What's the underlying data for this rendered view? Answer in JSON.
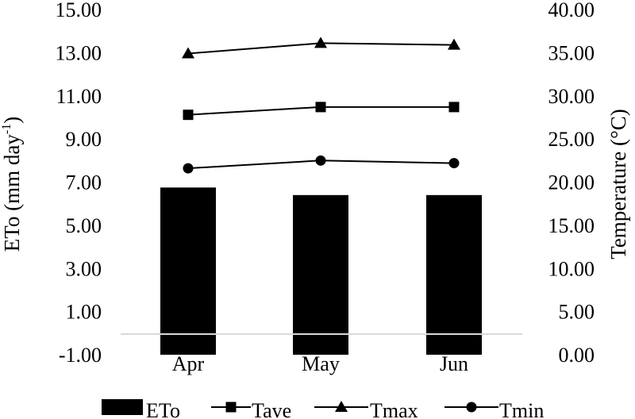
{
  "chart_data": {
    "type": "bar",
    "categories": [
      "Apr",
      "May",
      "Jun"
    ],
    "y_left": {
      "label": "ETo (mm day",
      "label_superscript": "-1",
      "label_close": ")",
      "ylim": [
        -1,
        15
      ],
      "ticks": [
        "15.00",
        "13.00",
        "11.00",
        "9.00",
        "7.00",
        "5.00",
        "3.00",
        "1.00",
        "-1.00"
      ]
    },
    "y_right": {
      "label": "Temperature (°C)",
      "ylim": [
        0,
        40
      ],
      "ticks": [
        "40.00",
        "35.00",
        "30.00",
        "25.00",
        "20.00",
        "15.00",
        "10.00",
        "5.00",
        "0.00"
      ]
    },
    "bar_series": {
      "name": "ETo",
      "axis": "left",
      "values": [
        6.75,
        6.4,
        6.4
      ],
      "color": "#000000"
    },
    "line_series": [
      {
        "name": "Tave",
        "axis": "right",
        "marker": "square",
        "values": [
          27.8,
          28.7,
          28.7
        ]
      },
      {
        "name": "Tmax",
        "axis": "right",
        "marker": "triangle",
        "values": [
          34.9,
          36.1,
          35.9
        ]
      },
      {
        "name": "Tmin",
        "axis": "right",
        "marker": "circle",
        "values": [
          21.6,
          22.5,
          22.2
        ]
      }
    ],
    "grid": false,
    "legend_position": "bottom",
    "legend": [
      "ETo",
      "Tave",
      "Tmax",
      "Tmin"
    ]
  }
}
